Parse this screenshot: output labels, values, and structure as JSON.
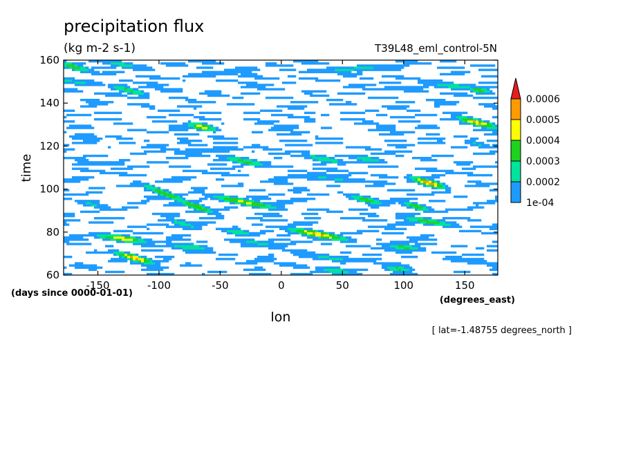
{
  "chart_data": {
    "type": "heatmap",
    "title": "precipitation flux",
    "subtitle": "(kg m-2 s-1)",
    "dataset": "T39L48_eml_control-5N",
    "xlabel": "lon",
    "xunits": "(degrees_east)",
    "ylabel": "time",
    "yunits": "(days since 0000-01-01)",
    "slice_note": "[ lat=-1.48755 degrees_north ]",
    "xlim": [
      -178,
      177
    ],
    "ylim": [
      60,
      160
    ],
    "xticks": [
      -150,
      -100,
      -50,
      0,
      50,
      100,
      150
    ],
    "yticks": [
      60,
      80,
      100,
      120,
      140,
      160
    ],
    "xtick_labels": [
      "-150",
      "-100",
      "-50",
      "0",
      "50",
      "100",
      "150"
    ],
    "ytick_labels": [
      "60",
      "80",
      "100",
      "120",
      "140",
      "160"
    ],
    "grid": false,
    "legend": "right",
    "colorbar": {
      "levels": [
        0.0001,
        0.0002,
        0.0003,
        0.0004,
        0.0005,
        0.0006
      ],
      "labels": [
        "1e-04",
        "0.0002",
        "0.0003",
        "0.0004",
        "0.0005",
        "0.0006"
      ],
      "colors": [
        "#1e9bff",
        "#00e39b",
        "#1ed21e",
        "#ffff00",
        "#ff9b00",
        "#e61e1e"
      ],
      "extend": "max"
    },
    "streaks": [
      {
        "lon": -170,
        "t": 157,
        "len": 45,
        "slope": -0.15,
        "v": 0.00035
      },
      {
        "lon": -130,
        "t": 158,
        "len": 60,
        "slope": -0.1,
        "v": 0.00025
      },
      {
        "lon": -170,
        "t": 150,
        "len": 70,
        "slope": -0.05,
        "v": 0.00022
      },
      {
        "lon": -125,
        "t": 146,
        "len": 40,
        "slope": -0.12,
        "v": 0.00032
      },
      {
        "lon": -50,
        "t": 154,
        "len": 90,
        "slope": 0.05,
        "v": 0.0002
      },
      {
        "lon": 60,
        "t": 156,
        "len": 120,
        "slope": 0.03,
        "v": 0.00022
      },
      {
        "lon": 140,
        "t": 148,
        "len": 70,
        "slope": -0.05,
        "v": 0.00025
      },
      {
        "lon": 162,
        "t": 146,
        "len": 25,
        "slope": -0.1,
        "v": 0.00036
      },
      {
        "lon": 100,
        "t": 147,
        "len": 60,
        "slope": 0.02,
        "v": 0.0002
      },
      {
        "lon": 160,
        "t": 131,
        "len": 40,
        "slope": -0.14,
        "v": 0.00052
      },
      {
        "lon": -65,
        "t": 129,
        "len": 30,
        "slope": -0.1,
        "v": 0.00045
      },
      {
        "lon": 160,
        "t": 121,
        "len": 30,
        "slope": -0.12,
        "v": 0.00022
      },
      {
        "lon": -60,
        "t": 118,
        "len": 80,
        "slope": 0.03,
        "v": 0.00021
      },
      {
        "lon": -30,
        "t": 113,
        "len": 50,
        "slope": -0.1,
        "v": 0.00033
      },
      {
        "lon": 35,
        "t": 114,
        "len": 45,
        "slope": -0.1,
        "v": 0.0003
      },
      {
        "lon": 70,
        "t": 114,
        "len": 40,
        "slope": -0.1,
        "v": 0.00028
      },
      {
        "lon": -150,
        "t": 112,
        "len": 60,
        "slope": 0.02,
        "v": 0.0002
      },
      {
        "lon": 120,
        "t": 103,
        "len": 35,
        "slope": -0.15,
        "v": 0.00055
      },
      {
        "lon": -95,
        "t": 98,
        "len": 55,
        "slope": -0.22,
        "v": 0.00037
      },
      {
        "lon": -70,
        "t": 92,
        "len": 45,
        "slope": -0.2,
        "v": 0.0004
      },
      {
        "lon": -30,
        "t": 94,
        "len": 70,
        "slope": -0.1,
        "v": 0.00042
      },
      {
        "lon": -155,
        "t": 93,
        "len": 40,
        "slope": -0.1,
        "v": 0.00022
      },
      {
        "lon": 70,
        "t": 95,
        "len": 40,
        "slope": -0.12,
        "v": 0.00035
      },
      {
        "lon": 110,
        "t": 92,
        "len": 35,
        "slope": -0.15,
        "v": 0.00035
      },
      {
        "lon": 120,
        "t": 85,
        "len": 60,
        "slope": -0.08,
        "v": 0.00034
      },
      {
        "lon": -80,
        "t": 84,
        "len": 35,
        "slope": -0.15,
        "v": 0.00028
      },
      {
        "lon": -35,
        "t": 80,
        "len": 40,
        "slope": -0.1,
        "v": 0.0003
      },
      {
        "lon": 30,
        "t": 79,
        "len": 60,
        "slope": -0.1,
        "v": 0.00052
      },
      {
        "lon": -130,
        "t": 77,
        "len": 55,
        "slope": -0.07,
        "v": 0.00045
      },
      {
        "lon": -75,
        "t": 73,
        "len": 45,
        "slope": -0.05,
        "v": 0.0003
      },
      {
        "lon": -20,
        "t": 75,
        "len": 70,
        "slope": -0.05,
        "v": 0.00022
      },
      {
        "lon": 100,
        "t": 73,
        "len": 40,
        "slope": -0.05,
        "v": 0.00033
      },
      {
        "lon": -120,
        "t": 68,
        "len": 40,
        "slope": -0.15,
        "v": 0.00052
      },
      {
        "lon": 40,
        "t": 68,
        "len": 80,
        "slope": -0.05,
        "v": 0.00022
      },
      {
        "lon": 45,
        "t": 62,
        "len": 40,
        "slope": -0.05,
        "v": 0.0003
      },
      {
        "lon": 95,
        "t": 63,
        "len": 30,
        "slope": -0.05,
        "v": 0.00033
      },
      {
        "lon": 150,
        "t": 67,
        "len": 50,
        "slope": -0.05,
        "v": 0.00021
      },
      {
        "lon": -160,
        "t": 64,
        "len": 40,
        "slope": -0.05,
        "v": 0.00021
      },
      {
        "lon": -160,
        "t": 124,
        "len": 40,
        "slope": -0.05,
        "v": 0.00021
      },
      {
        "lon": 40,
        "t": 105,
        "len": 100,
        "slope": -0.05,
        "v": 0.00021
      }
    ]
  }
}
